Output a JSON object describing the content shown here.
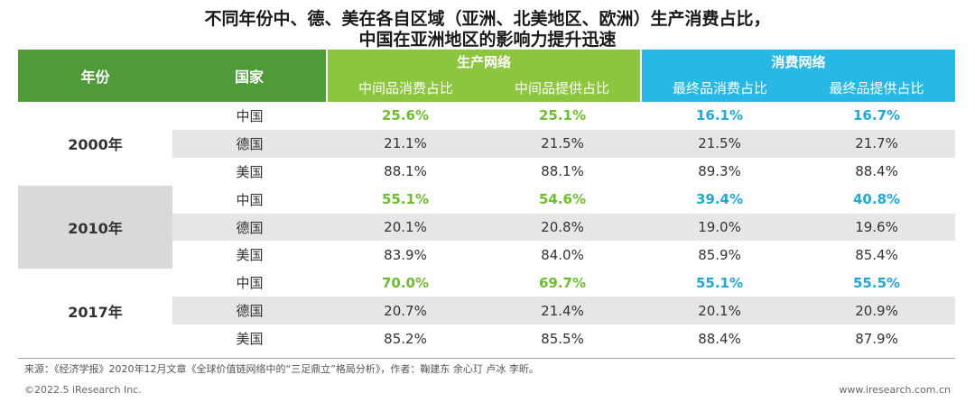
{
  "title_line1": "不同年份中、德、美在各自区域（亚洲、北美地区、欧洲）生产消费占比，",
  "title_line2": "中国在亚洲地区的影响力提升迅速",
  "header": {
    "year": "年份",
    "country": "国家",
    "production_network": "生产网络",
    "consumption_network": "消费网络",
    "sub": [
      "中间品消费占比",
      "中间品提供占比",
      "最终品消费占比",
      "最终品提供占比"
    ]
  },
  "colors": {
    "dark_green": "#4f9b3a",
    "light_green": "#8cc63f",
    "blue": "#27b8e6"
  },
  "chart_data": {
    "type": "table",
    "columns": [
      "年份",
      "国家",
      "中间品消费占比",
      "中间品提供占比",
      "最终品消费占比",
      "最终品提供占比"
    ],
    "groups": [
      {
        "year": "2000年",
        "rows": [
          {
            "country": "中国",
            "values": [
              "25.6%",
              "25.1%",
              "16.1%",
              "16.7%"
            ]
          },
          {
            "country": "德国",
            "values": [
              "21.1%",
              "21.5%",
              "21.5%",
              "21.7%"
            ]
          },
          {
            "country": "美国",
            "values": [
              "88.1%",
              "88.1%",
              "89.3%",
              "88.4%"
            ]
          }
        ]
      },
      {
        "year": "2010年",
        "rows": [
          {
            "country": "中国",
            "values": [
              "55.1%",
              "54.6%",
              "39.4%",
              "40.8%"
            ]
          },
          {
            "country": "德国",
            "values": [
              "20.1%",
              "20.8%",
              "19.0%",
              "19.6%"
            ]
          },
          {
            "country": "美国",
            "values": [
              "83.9%",
              "84.0%",
              "85.9%",
              "85.4%"
            ]
          }
        ]
      },
      {
        "year": "2017年",
        "rows": [
          {
            "country": "中国",
            "values": [
              "70.0%",
              "69.7%",
              "55.1%",
              "55.5%"
            ]
          },
          {
            "country": "德国",
            "values": [
              "20.7%",
              "21.4%",
              "20.1%",
              "20.9%"
            ]
          },
          {
            "country": "美国",
            "values": [
              "85.2%",
              "85.5%",
              "88.4%",
              "87.9%"
            ]
          }
        ]
      }
    ]
  },
  "source": "来源：《经济学报》2020年12月文章《全球价值链网络中的“三足鼎立”格局分析》，作者：鞠建东 余心玎 卢冰 李昕。",
  "footer_left": "©2022.5 iResearch Inc.",
  "footer_right": "www.iresearch.com.cn"
}
